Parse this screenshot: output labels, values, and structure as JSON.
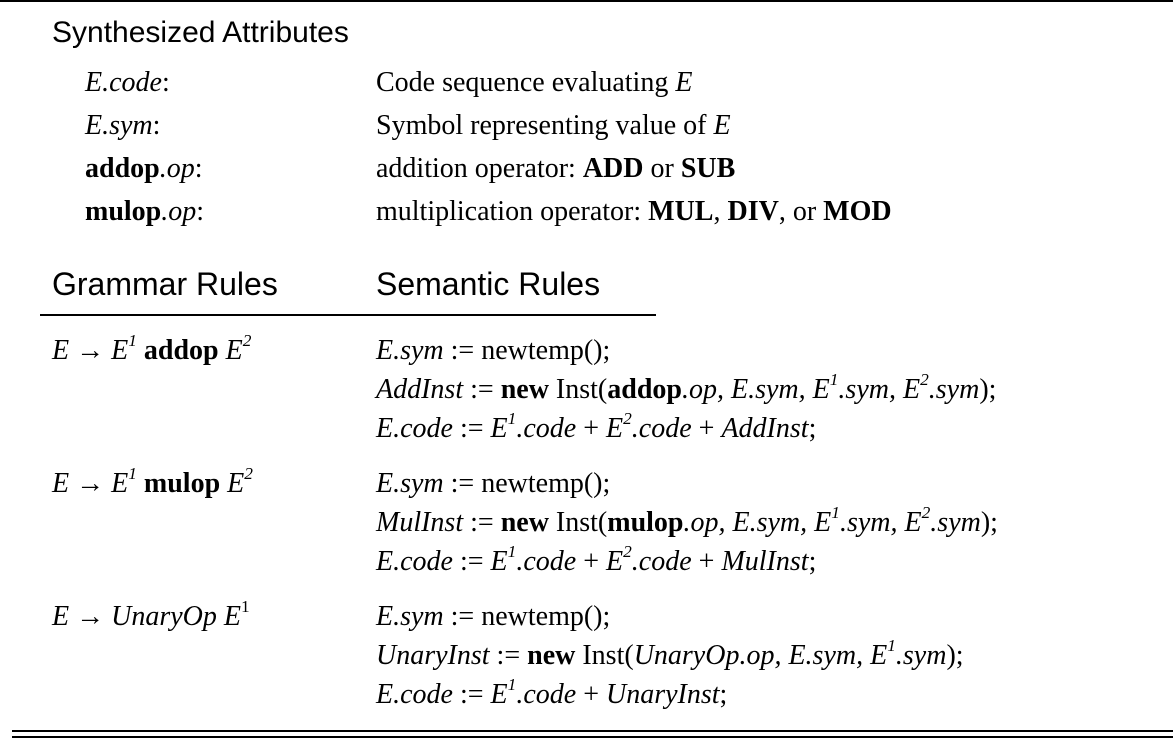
{
  "title": "Synthesized Attributes",
  "attributes": [
    {
      "name_main": "E",
      "name_rest": ".code",
      "colon": ":",
      "desc_text": "Code sequence evaluating ",
      "desc_var": "E"
    },
    {
      "name_main": "E",
      "name_rest": ".sym",
      "colon": ":",
      "desc_text": "Symbol representing value of ",
      "desc_var": "E"
    },
    {
      "name_main": "addop",
      "name_rest": ".op",
      "colon": ":",
      "desc_text": "addition operator: ",
      "op1": "ADD",
      "sep1": " or ",
      "op2": "SUB"
    },
    {
      "name_main": "mulop",
      "name_rest": ".op",
      "colon": ":",
      "desc_text": "multiplication operator: ",
      "op1": "MUL",
      "sep1": ", ",
      "op2": "DIV",
      "sep2": ", or ",
      "op3": "MOD"
    }
  ],
  "columns": {
    "grammar": "Grammar Rules",
    "semantic": "Semantic Rules"
  },
  "rules": [
    {
      "production": {
        "lhs": "E",
        "arrow": "→",
        "e1": "E",
        "sup1": "1",
        "op": "addop",
        "e2": "E",
        "sup2": "2"
      },
      "lines": [
        {
          "a": "E.sym",
          "b": " := newtemp();"
        },
        {
          "a": "AddInst",
          "b": " := ",
          "c": "new",
          "d": " Inst(",
          "e": "addop",
          "f": ".op",
          "g": ", E.sym, E",
          "h": "1",
          "i": ".sym, E",
          "j": "2",
          "k": ".sym",
          "l": ");"
        },
        {
          "a": "E.code",
          "b": " := ",
          "c": "E",
          "d": "1",
          "e": ".code",
          "f": " + ",
          "g": "E",
          "h": "2",
          "i": ".code",
          "j": " + ",
          "k": "AddInst",
          "l": ";"
        }
      ]
    },
    {
      "production": {
        "lhs": "E",
        "arrow": "→",
        "e1": "E",
        "sup1": "1",
        "op": "mulop",
        "e2": "E",
        "sup2": "2"
      },
      "lines": [
        {
          "a": "E.sym",
          "b": " := newtemp();"
        },
        {
          "a": "MulInst",
          "b": " := ",
          "c": "new",
          "d": " Inst(",
          "e": "mulop",
          "f": ".op",
          "g": ", E.sym, E",
          "h": "1",
          "i": ".sym, E",
          "j": "2",
          "k": ".sym",
          "l": ");"
        },
        {
          "a": "E.code",
          "b": " := ",
          "c": "E",
          "d": "1",
          "e": ".code",
          "f": " + ",
          "g": "E",
          "h": "2",
          "i": ".code",
          "j": " + ",
          "k": "MulInst",
          "l": ";"
        }
      ]
    },
    {
      "production": {
        "lhs": "E",
        "arrow": "→",
        "op": "UnaryOp",
        "e1": "E",
        "sup1": "1"
      },
      "lines": [
        {
          "a": "E.sym",
          "b": " := newtemp();"
        },
        {
          "a": "UnaryInst",
          "b": " := ",
          "c": "new",
          "d": " Inst(",
          "e": "UnaryOp.op",
          "f": ", E.sym, E",
          "g": "1",
          "h": ".sym",
          "i": ");"
        },
        {
          "a": "E.code",
          "b": " := ",
          "c": "E",
          "d": "1",
          "e": ".code",
          "f": " + ",
          "g": "UnaryInst",
          "h": ";"
        }
      ]
    }
  ]
}
